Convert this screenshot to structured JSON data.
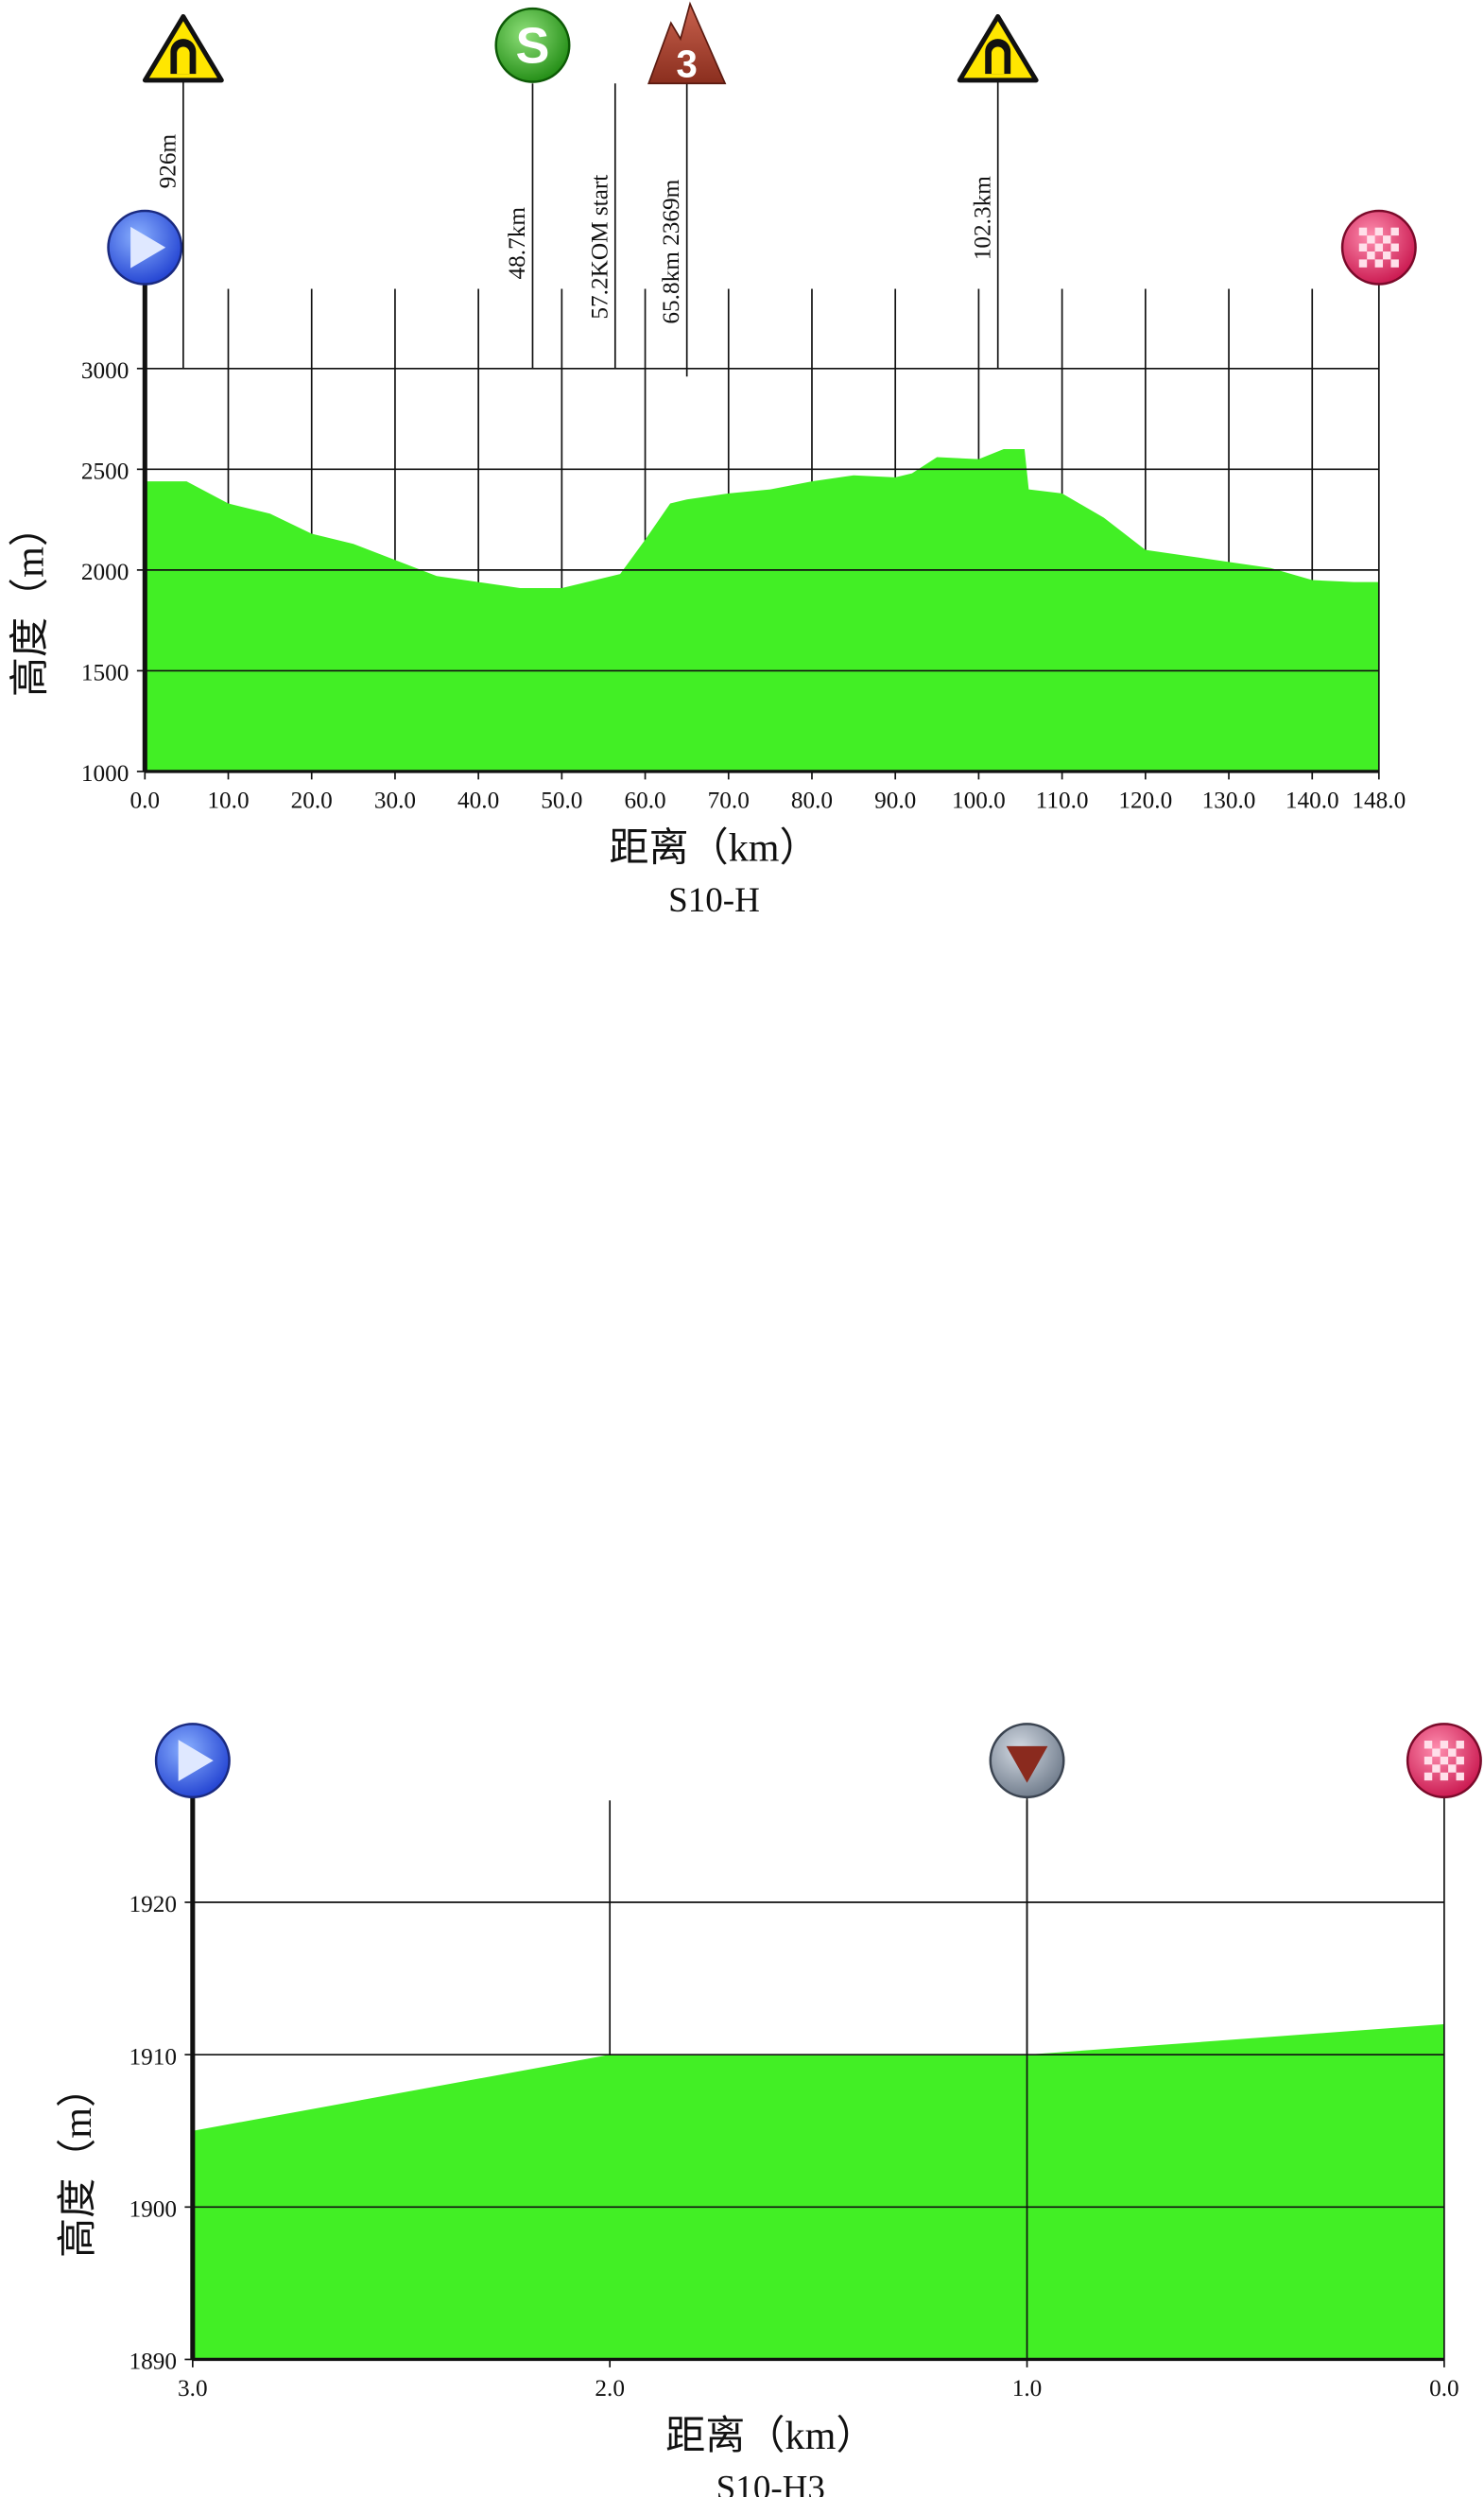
{
  "chart_data": [
    {
      "type": "area",
      "title": "S10-H",
      "x_label": "距离（km）",
      "y_label": "高度（m）",
      "xlim": [
        0,
        148
      ],
      "ylim": [
        1000,
        3000
      ],
      "xticks": [
        {
          "value": 0,
          "label": "0.0"
        },
        {
          "value": 10,
          "label": "10.0"
        },
        {
          "value": 20,
          "label": "20.0"
        },
        {
          "value": 30,
          "label": "30.0"
        },
        {
          "value": 40,
          "label": "40.0"
        },
        {
          "value": 50,
          "label": "50.0"
        },
        {
          "value": 60,
          "label": "60.0"
        },
        {
          "value": 70,
          "label": "70.0"
        },
        {
          "value": 80,
          "label": "80.0"
        },
        {
          "value": 90,
          "label": "90.0"
        },
        {
          "value": 100,
          "label": "100.0"
        },
        {
          "value": 110,
          "label": "110.0"
        },
        {
          "value": 120,
          "label": "120.0"
        },
        {
          "value": 130,
          "label": "130.0"
        },
        {
          "value": 140,
          "label": "140.0"
        },
        {
          "value": 148,
          "label": "148.0"
        }
      ],
      "yticks": [
        1000,
        1500,
        2000,
        2500,
        3000
      ],
      "grid": true,
      "series": [
        {
          "name": "高度",
          "color": "#42ef25",
          "x": [
            0,
            5,
            10,
            15,
            20,
            25,
            30,
            35,
            40,
            45,
            50,
            55,
            57,
            60,
            63,
            65,
            70,
            75,
            80,
            85,
            90,
            92,
            95,
            100,
            103,
            105.5,
            106,
            110,
            115,
            120,
            125,
            130,
            135,
            140,
            145,
            148
          ],
          "values": [
            2440,
            2440,
            2330,
            2280,
            2180,
            2130,
            2050,
            1970,
            1940,
            1910,
            1910,
            1960,
            1980,
            2150,
            2330,
            2350,
            2380,
            2400,
            2440,
            2470,
            2460,
            2480,
            2560,
            2550,
            2600,
            2600,
            2400,
            2380,
            2260,
            2100,
            2070,
            2040,
            2010,
            1950,
            1940,
            1940
          ]
        }
      ],
      "markers": [
        {
          "type": "start",
          "x": 0
        },
        {
          "type": "tunnel",
          "x": 4.6,
          "label": "926m"
        },
        {
          "type": "sprint",
          "x": 46.5,
          "label": "48.7km",
          "icon_text": "S"
        },
        {
          "type": "line",
          "x": 56.4,
          "label": "57.2KOM start"
        },
        {
          "type": "kom",
          "x": 65,
          "label": "65.8km 2369m",
          "icon_text": "3"
        },
        {
          "type": "tunnel",
          "x": 102.3,
          "label": "102.3km"
        },
        {
          "type": "finish",
          "x": 148
        }
      ]
    },
    {
      "type": "area",
      "title": "S10-H3",
      "x_label": "距离（km）",
      "y_label": "高度（m）",
      "xlim": [
        3,
        0
      ],
      "ylim": [
        1890,
        1920
      ],
      "xticks": [
        {
          "value": 3,
          "label": "3.0"
        },
        {
          "value": 2,
          "label": "2.0"
        },
        {
          "value": 1,
          "label": "1.0"
        },
        {
          "value": 0,
          "label": "0.0"
        }
      ],
      "yticks": [
        1890,
        1900,
        1910,
        1920
      ],
      "grid": true,
      "series": [
        {
          "name": "高度",
          "color": "#42ef25",
          "x": [
            3,
            2,
            1,
            0
          ],
          "values": [
            1905,
            1910,
            1910,
            1912
          ]
        }
      ],
      "markers": [
        {
          "type": "start",
          "x": 3
        },
        {
          "type": "descent",
          "x": 1
        },
        {
          "type": "finish",
          "x": 0
        }
      ]
    }
  ]
}
